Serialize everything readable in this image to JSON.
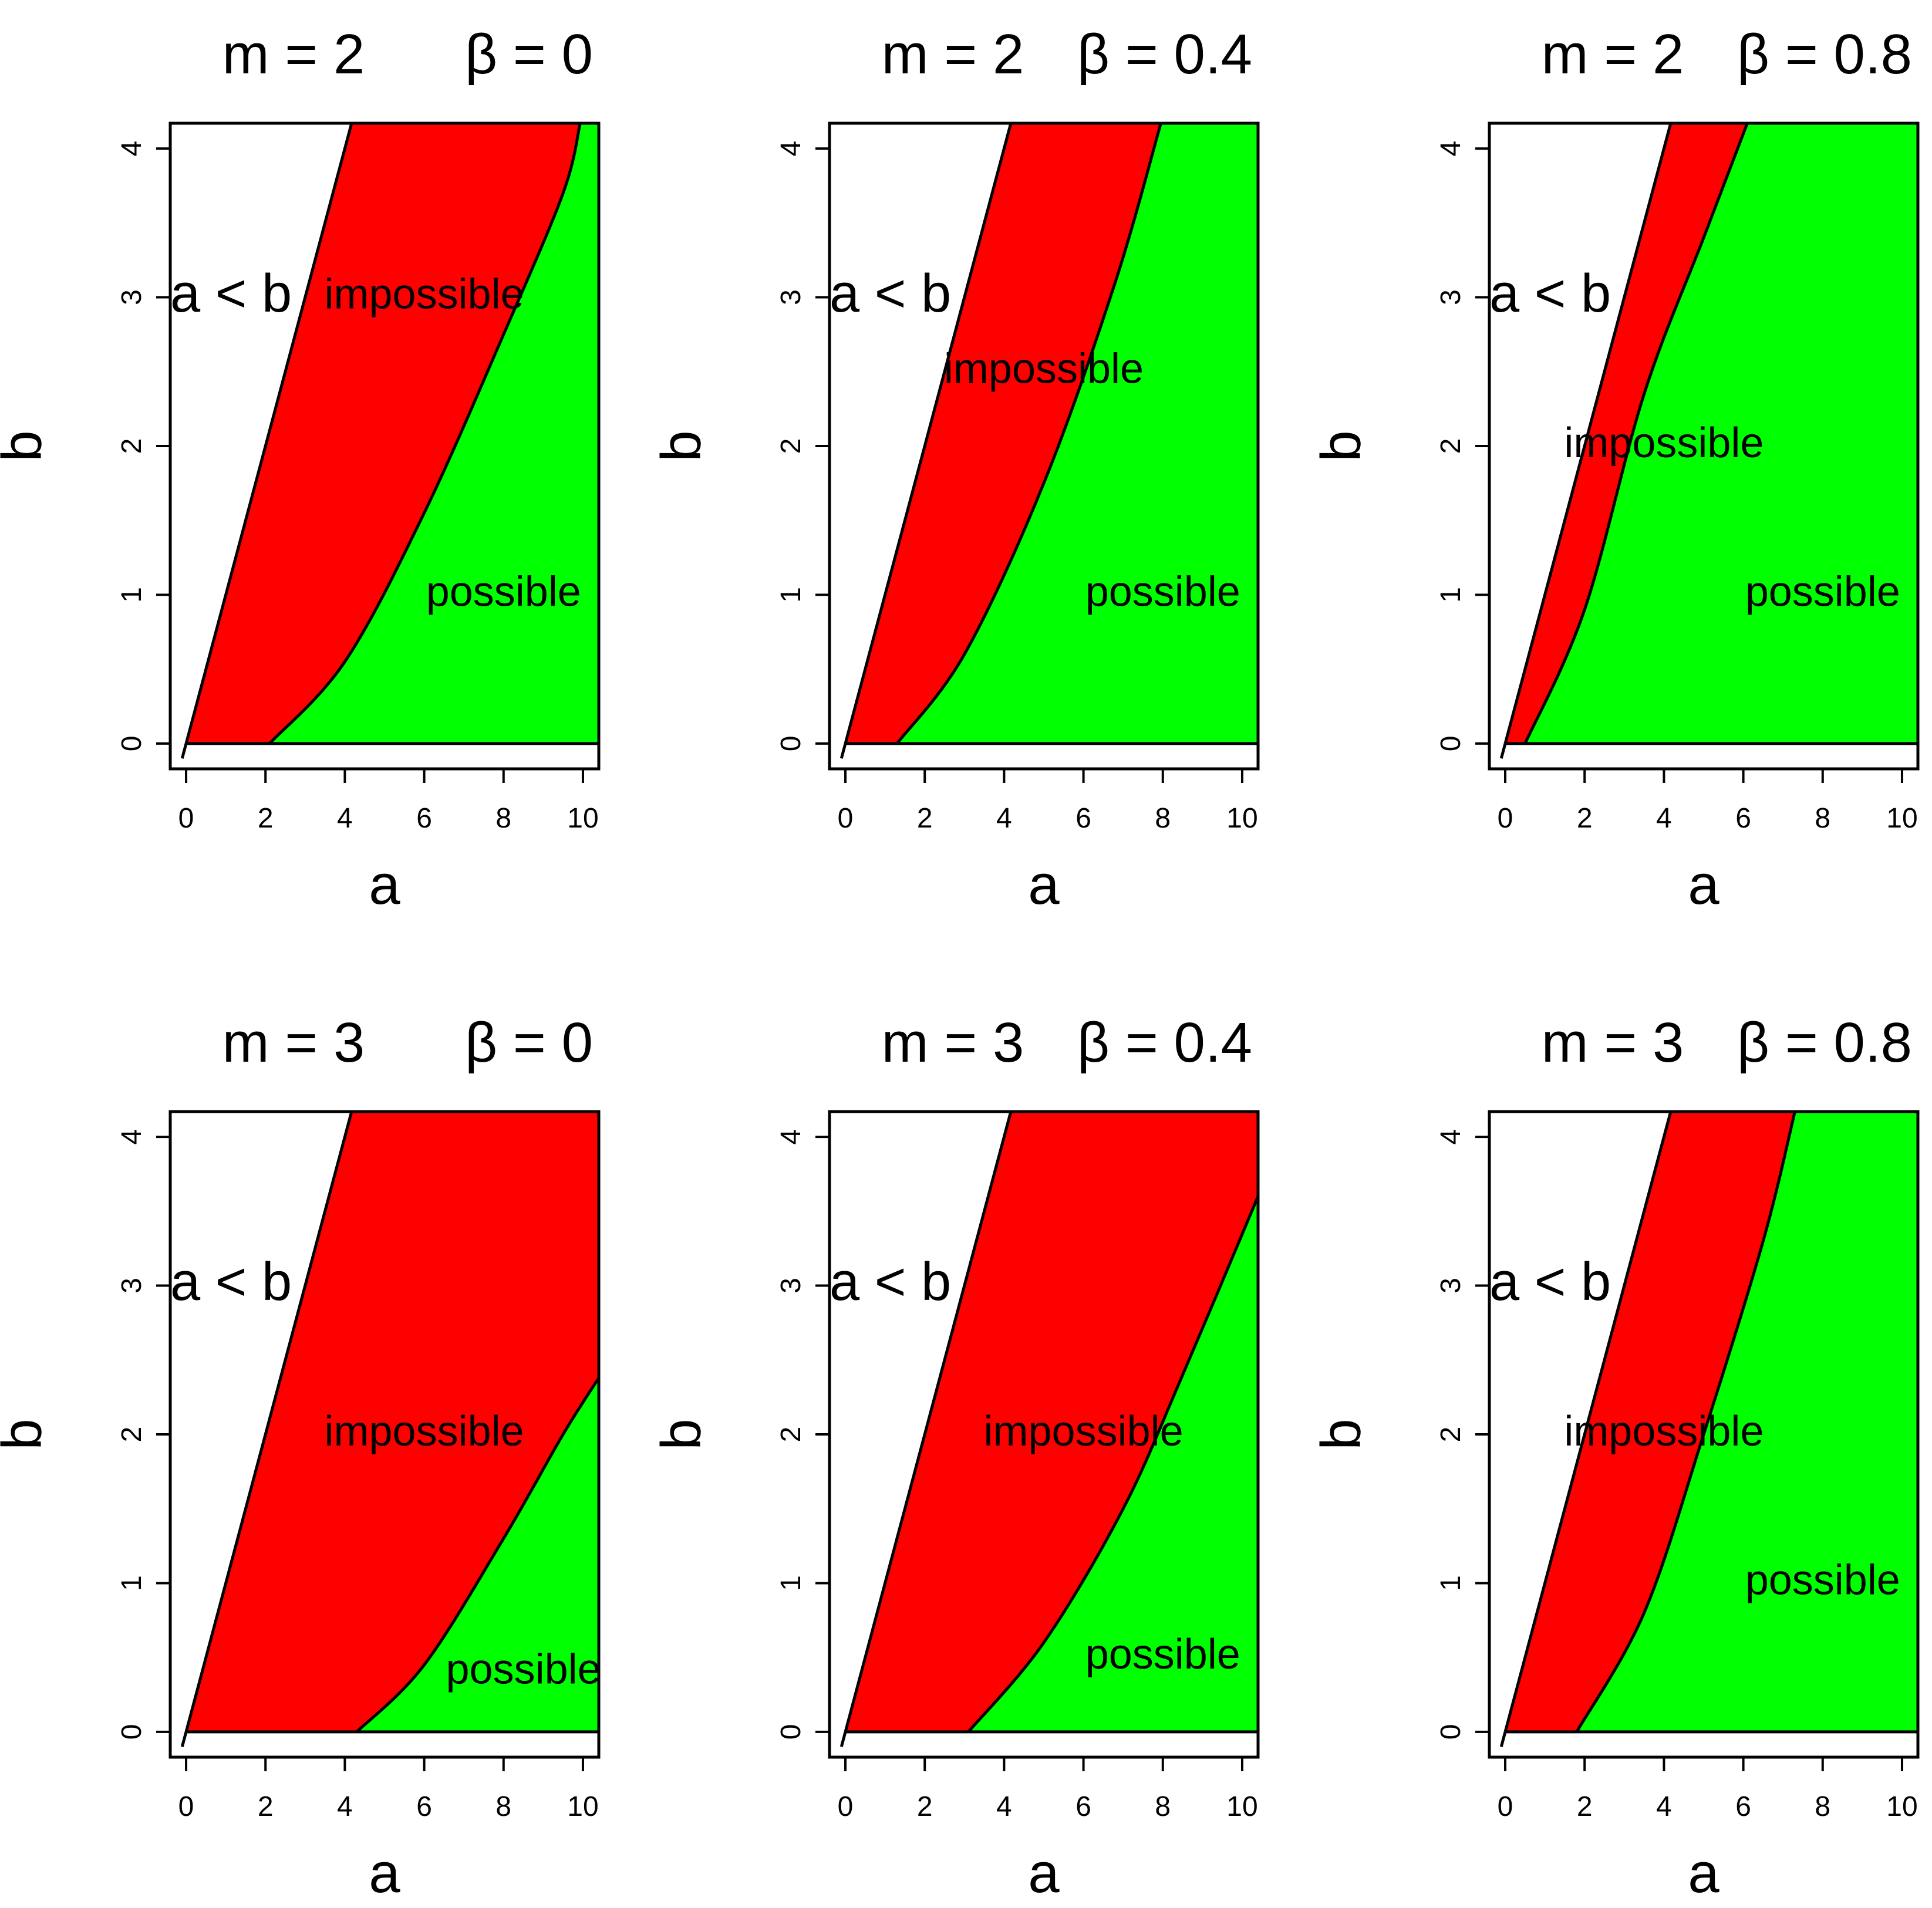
{
  "figure": {
    "name": "feasibility-region-grid"
  },
  "style": {
    "impossible_color": "#ff0000",
    "possible_color": "#00ff00",
    "infeasible_color": "#ffffff",
    "line_color": "#000000"
  },
  "chart_data": [
    {
      "type": "area",
      "m": 2,
      "beta": 0,
      "title_left": "m = 2",
      "title_right": "β = 0",
      "xlabel": "a",
      "ylabel": "b",
      "xlim": [
        -0.4,
        10.4
      ],
      "ylim": [
        -0.17,
        4.17
      ],
      "xticks": [
        0,
        2,
        4,
        6,
        8,
        10
      ],
      "yticks": [
        0,
        1,
        2,
        3,
        4
      ],
      "boundary_line": {
        "label": "b = a",
        "points": [
          [
            0,
            0
          ],
          [
            4.17,
            4.17
          ]
        ]
      },
      "boundary_curve": {
        "a_at_b0": 2.1,
        "points": [
          [
            2.1,
            0
          ],
          [
            4,
            0.55
          ],
          [
            6,
            1.55
          ],
          [
            8,
            2.75
          ],
          [
            9.5,
            3.7
          ],
          [
            9.93,
            4.17
          ]
        ]
      },
      "regions": [
        {
          "label": "a < b",
          "label_at": [
            1.3,
            3
          ]
        },
        {
          "label": "impossible",
          "label_at": [
            6,
            3
          ]
        },
        {
          "label": "possible",
          "label_at": [
            8,
            1
          ]
        }
      ]
    },
    {
      "type": "area",
      "m": 2,
      "beta": 0.4,
      "title_left": "m = 2",
      "title_right": "β = 0.4",
      "xlabel": "a",
      "ylabel": "b",
      "xlim": [
        -0.4,
        10.4
      ],
      "ylim": [
        -0.17,
        4.17
      ],
      "xticks": [
        0,
        2,
        4,
        6,
        8,
        10
      ],
      "yticks": [
        0,
        1,
        2,
        3,
        4
      ],
      "boundary_line": {
        "label": "b = a",
        "points": [
          [
            0,
            0
          ],
          [
            4.17,
            4.17
          ]
        ]
      },
      "boundary_curve": {
        "a_at_b0": 1.3,
        "points": [
          [
            1.3,
            0
          ],
          [
            3,
            0.6
          ],
          [
            5,
            1.75
          ],
          [
            6.8,
            3.1
          ],
          [
            7.95,
            4.17
          ]
        ]
      },
      "regions": [
        {
          "label": "a < b",
          "label_at": [
            1.3,
            3
          ]
        },
        {
          "label": "impossible",
          "label_at": [
            5,
            2.5
          ]
        },
        {
          "label": "possible",
          "label_at": [
            8,
            1
          ]
        }
      ]
    },
    {
      "type": "area",
      "m": 2,
      "beta": 0.8,
      "title_left": "m = 2",
      "title_right": "β = 0.8",
      "xlabel": "a",
      "ylabel": "b",
      "xlim": [
        -0.4,
        10.4
      ],
      "ylim": [
        -0.17,
        4.17
      ],
      "xticks": [
        0,
        2,
        4,
        6,
        8,
        10
      ],
      "yticks": [
        0,
        1,
        2,
        3,
        4
      ],
      "boundary_line": {
        "label": "b = a",
        "points": [
          [
            0,
            0
          ],
          [
            4.17,
            4.17
          ]
        ]
      },
      "boundary_curve": {
        "a_at_b0": 0.5,
        "points": [
          [
            0.5,
            0
          ],
          [
            2,
            0.9
          ],
          [
            3.5,
            2.35
          ],
          [
            5,
            3.4
          ],
          [
            6.1,
            4.17
          ]
        ]
      },
      "regions": [
        {
          "label": "a < b",
          "label_at": [
            1.3,
            3
          ]
        },
        {
          "label": "impossible",
          "label_at": [
            4,
            2
          ]
        },
        {
          "label": "possible",
          "label_at": [
            8,
            1
          ]
        }
      ]
    },
    {
      "type": "area",
      "m": 3,
      "beta": 0,
      "title_left": "m = 3",
      "title_right": "β = 0",
      "xlabel": "a",
      "ylabel": "b",
      "xlim": [
        -0.4,
        10.4
      ],
      "ylim": [
        -0.17,
        4.17
      ],
      "xticks": [
        0,
        2,
        4,
        6,
        8,
        10
      ],
      "yticks": [
        0,
        1,
        2,
        3,
        4
      ],
      "boundary_line": {
        "label": "b = a",
        "points": [
          [
            0,
            0
          ],
          [
            4.17,
            4.17
          ]
        ]
      },
      "boundary_curve": {
        "a_at_b0": 4.3,
        "points": [
          [
            4.3,
            0
          ],
          [
            6,
            0.45
          ],
          [
            8,
            1.3
          ],
          [
            9.5,
            2
          ],
          [
            10.4,
            2.38
          ]
        ]
      },
      "regions": [
        {
          "label": "a < b",
          "label_at": [
            1.3,
            3
          ]
        },
        {
          "label": "impossible",
          "label_at": [
            6,
            2
          ]
        },
        {
          "label": "possible",
          "label_at": [
            8.5,
            0.4
          ]
        }
      ]
    },
    {
      "type": "area",
      "m": 3,
      "beta": 0.4,
      "title_left": "m = 3",
      "title_right": "β = 0.4",
      "xlabel": "a",
      "ylabel": "b",
      "xlim": [
        -0.4,
        10.4
      ],
      "ylim": [
        -0.17,
        4.17
      ],
      "xticks": [
        0,
        2,
        4,
        6,
        8,
        10
      ],
      "yticks": [
        0,
        1,
        2,
        3,
        4
      ],
      "boundary_line": {
        "label": "b = a",
        "points": [
          [
            0,
            0
          ],
          [
            4.17,
            4.17
          ]
        ]
      },
      "boundary_curve": {
        "a_at_b0": 3.1,
        "points": [
          [
            3.1,
            0
          ],
          [
            5,
            0.6
          ],
          [
            7,
            1.5
          ],
          [
            8.5,
            2.4
          ],
          [
            10.4,
            3.6
          ]
        ]
      },
      "regions": [
        {
          "label": "a < b",
          "label_at": [
            1.3,
            3
          ]
        },
        {
          "label": "impossible",
          "label_at": [
            6,
            2
          ]
        },
        {
          "label": "possible",
          "label_at": [
            8,
            0.5
          ]
        }
      ]
    },
    {
      "type": "area",
      "m": 3,
      "beta": 0.8,
      "title_left": "m = 3",
      "title_right": "β = 0.8",
      "xlabel": "a",
      "ylabel": "b",
      "xlim": [
        -0.4,
        10.4
      ],
      "ylim": [
        -0.17,
        4.17
      ],
      "xticks": [
        0,
        2,
        4,
        6,
        8,
        10
      ],
      "yticks": [
        0,
        1,
        2,
        3,
        4
      ],
      "boundary_line": {
        "label": "b = a",
        "points": [
          [
            0,
            0
          ],
          [
            4.17,
            4.17
          ]
        ]
      },
      "boundary_curve": {
        "a_at_b0": 1.8,
        "points": [
          [
            1.8,
            0
          ],
          [
            3.5,
            0.8
          ],
          [
            5,
            2
          ],
          [
            6.5,
            3.3
          ],
          [
            7.3,
            4.17
          ]
        ]
      },
      "regions": [
        {
          "label": "a < b",
          "label_at": [
            1.3,
            3
          ]
        },
        {
          "label": "impossible",
          "label_at": [
            4,
            2
          ]
        },
        {
          "label": "possible",
          "label_at": [
            8,
            1
          ]
        }
      ]
    }
  ]
}
